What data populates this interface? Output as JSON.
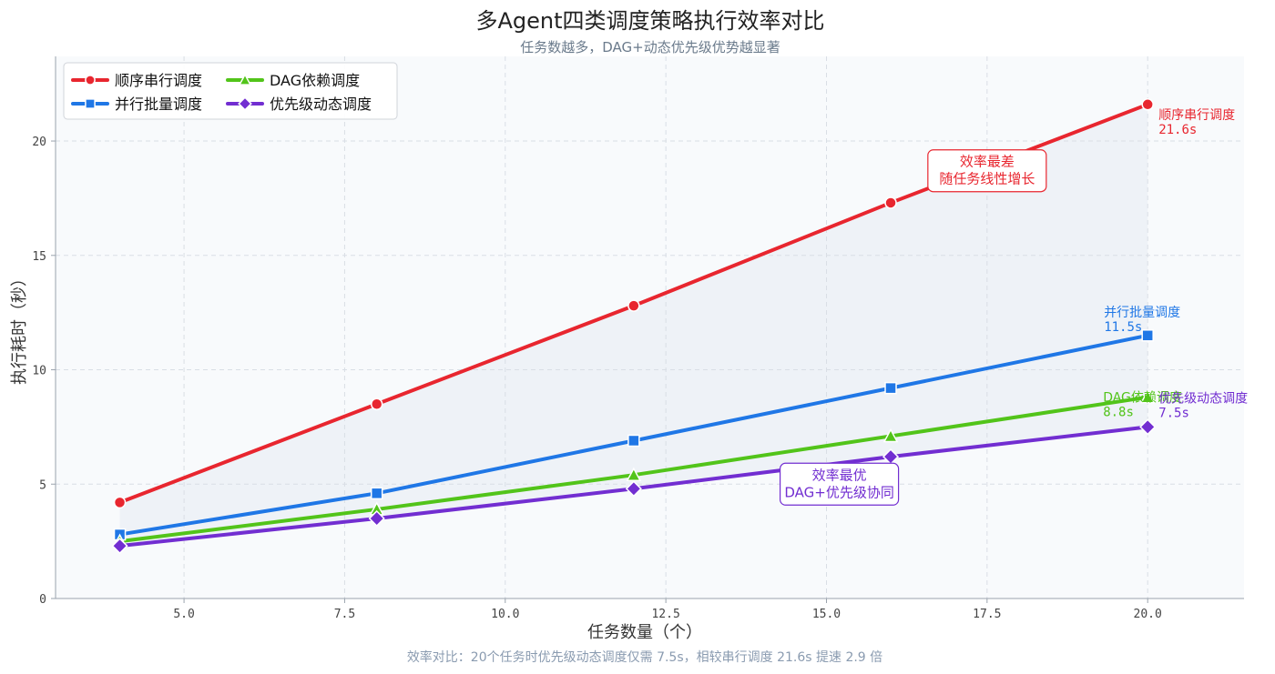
{
  "chart_data": {
    "type": "line",
    "title": "多Agent四类调度策略执行效率对比",
    "subtitle": "任务数越多，DAG+动态优先级优势越显著",
    "xlabel": "任务数量（个）",
    "ylabel": "执行耗时（秒）",
    "xlim": [
      3.0,
      21.5
    ],
    "ylim": [
      0,
      23.7
    ],
    "x_ticks": [
      5.0,
      7.5,
      10.0,
      12.5,
      15.0,
      17.5,
      20.0
    ],
    "x_tick_labels": [
      "5.0",
      "7.5",
      "10.0",
      "12.5",
      "15.0",
      "17.5",
      "20.0"
    ],
    "y_ticks": [
      0,
      5,
      10,
      15,
      20
    ],
    "y_tick_labels": [
      "0",
      "5",
      "10",
      "15",
      "20"
    ],
    "grid": true,
    "legend_position": "top-left",
    "x": [
      4,
      8,
      12,
      16,
      20
    ],
    "series": [
      {
        "name": "顺序串行调度",
        "values": [
          4.2,
          8.5,
          12.8,
          17.3,
          21.6
        ],
        "color": "#e8262f",
        "marker": "circle",
        "end_label": "顺序串行调度",
        "end_value": "21.6s"
      },
      {
        "name": "并行批量调度",
        "values": [
          2.8,
          4.6,
          6.9,
          9.2,
          11.5
        ],
        "color": "#1f77e6",
        "marker": "square",
        "end_label": "并行批量调度",
        "end_value": "11.5s"
      },
      {
        "name": "DAG依赖调度",
        "values": [
          2.5,
          3.9,
          5.4,
          7.1,
          8.8
        ],
        "color": "#52c41a",
        "marker": "triangle",
        "end_label": "DAG依赖调度",
        "end_value": "8.8s"
      },
      {
        "name": "优先级动态调度",
        "values": [
          2.3,
          3.5,
          4.8,
          6.2,
          7.5
        ],
        "color": "#722ed1",
        "marker": "diamond",
        "end_label": "优先级动态调度",
        "end_value": "7.5s"
      }
    ],
    "annotations": [
      {
        "lines": [
          "效率最差",
          "随任务线性增长"
        ],
        "color": "#e8262f",
        "x": 17.5,
        "y": 18.7
      },
      {
        "lines": [
          "效率最优",
          "DAG+优先级协同"
        ],
        "color": "#722ed1",
        "x": 15.2,
        "y": 5.0
      }
    ],
    "footer": "效率对比：20个任务时优先级动态调度仅需 7.5s，相较串行调度 21.6s 提速 2.9 倍"
  }
}
